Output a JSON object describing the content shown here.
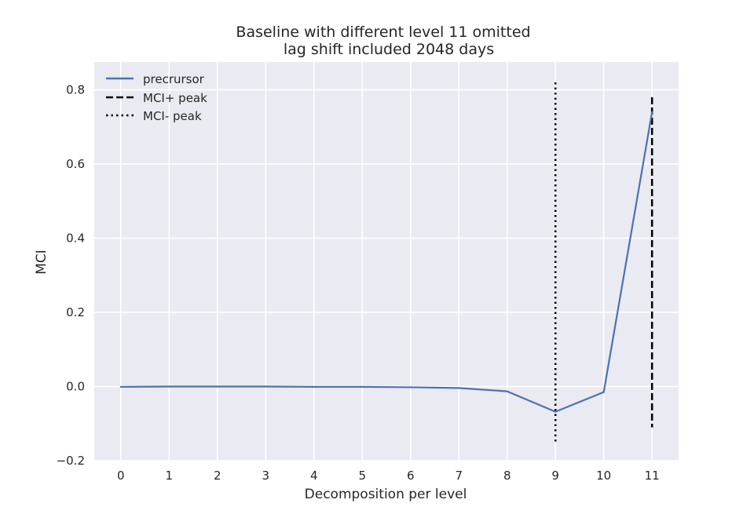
{
  "chart_data": {
    "type": "line",
    "title_line1": "Baseline with different level 11 omitted",
    "title_line2": "lag shift included 2048 days",
    "xlabel": "Decomposition per level",
    "ylabel": "MCI",
    "xlim": [
      -0.55,
      11.55
    ],
    "ylim": [
      -0.2,
      0.875
    ],
    "x_ticks": [
      0,
      1,
      2,
      3,
      4,
      5,
      6,
      7,
      8,
      9,
      10,
      11
    ],
    "x_tick_labels": [
      "0",
      "1",
      "2",
      "3",
      "4",
      "5",
      "6",
      "7",
      "8",
      "9",
      "10",
      "11"
    ],
    "y_ticks": [
      -0.2,
      0.0,
      0.2,
      0.4,
      0.6,
      0.8
    ],
    "y_tick_labels": [
      "−0.2",
      "0.0",
      "0.2",
      "0.4",
      "0.6",
      "0.8"
    ],
    "grid": true,
    "legend_position": "top-left",
    "series": [
      {
        "name": "precrursor",
        "style": "solid",
        "color": "#4c72b0",
        "x": [
          0,
          1,
          2,
          3,
          4,
          5,
          6,
          7,
          8,
          9,
          10,
          11
        ],
        "y": [
          -0.001,
          0.0,
          0.0,
          0.0,
          -0.001,
          -0.001,
          -0.002,
          -0.004,
          -0.013,
          -0.068,
          -0.015,
          0.74
        ]
      }
    ],
    "vlines": [
      {
        "name": "MCI+ peak",
        "style": "dashed",
        "color": "#000000",
        "x": 11,
        "ymin": -0.11,
        "ymax": 0.78
      },
      {
        "name": "MCI- peak",
        "style": "dotted",
        "color": "#000000",
        "x": 9,
        "ymin": -0.155,
        "ymax": 0.82
      }
    ],
    "colors": {
      "plot_background": "#eaeaf2",
      "grid": "#ffffff"
    }
  }
}
